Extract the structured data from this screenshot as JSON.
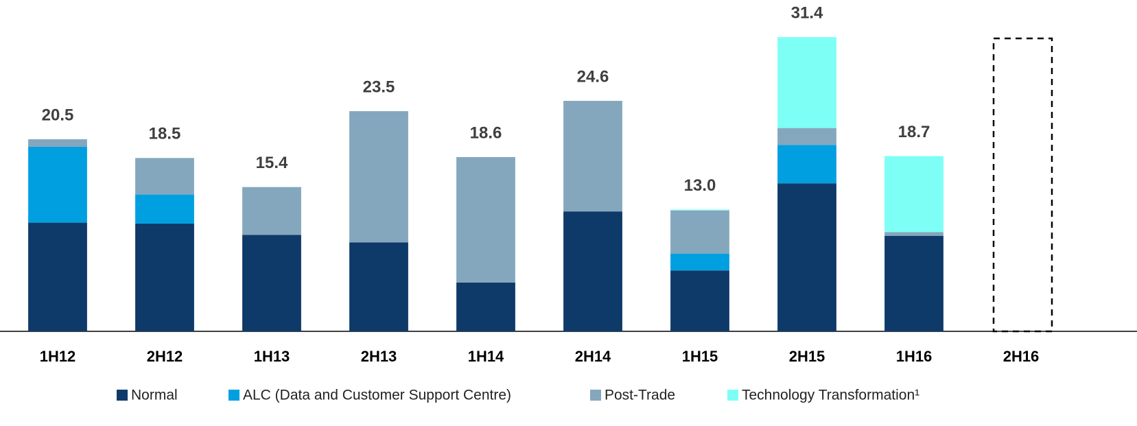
{
  "chart_data": {
    "type": "stacked_bar",
    "categories": [
      "1H12",
      "2H12",
      "1H13",
      "2H13",
      "1H14",
      "2H14",
      "1H15",
      "2H15",
      "1H16",
      "2H16"
    ],
    "series": [
      {
        "name": "Normal",
        "color": "#0e3a6a",
        "values": [
          11.6,
          11.5,
          10.3,
          9.5,
          5.2,
          12.8,
          6.5,
          15.8,
          10.2,
          null
        ]
      },
      {
        "name": "ALC (Data and Customer Support Centre)",
        "color": "#009fe0",
        "values": [
          8.1,
          3.1,
          0,
          0,
          0,
          0,
          1.8,
          4.1,
          0,
          null
        ]
      },
      {
        "name": "Post-Trade",
        "color": "#84a7bd",
        "values": [
          0.8,
          3.9,
          5.1,
          14.0,
          13.4,
          11.8,
          4.6,
          1.8,
          0.4,
          null
        ]
      },
      {
        "name": "Technology Transformation¹",
        "color": "#7dfff6",
        "values": [
          0,
          0,
          0,
          0,
          0,
          0,
          0.1,
          9.7,
          8.1,
          null
        ]
      }
    ],
    "totals": [
      20.5,
      18.5,
      15.4,
      23.5,
      18.6,
      24.6,
      13.0,
      31.4,
      18.7,
      null
    ],
    "total_labels": [
      "20.5",
      "18.5",
      "15.4",
      "23.5",
      "18.6",
      "24.6",
      "13.0",
      "31.4",
      "18.7",
      null
    ],
    "ylim": [
      0,
      35
    ]
  }
}
